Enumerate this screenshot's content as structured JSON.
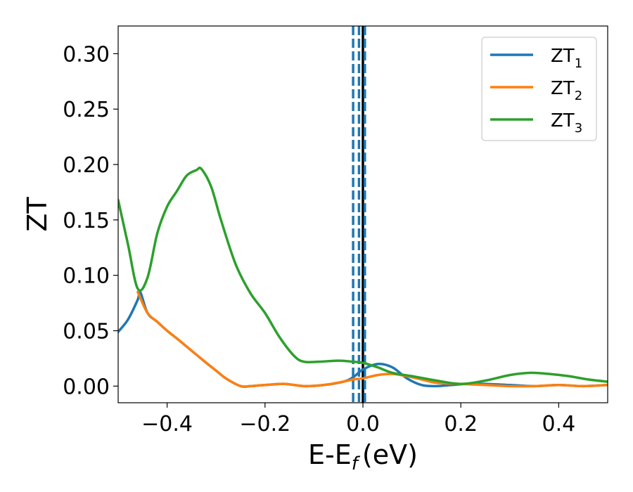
{
  "chart_data": {
    "type": "line",
    "xlabel": "E-E",
    "xlabel_subscript": "f",
    "xlabel_unit": "(eV)",
    "ylabel": "ZT",
    "xlim": [
      -0.5,
      0.5
    ],
    "ylim": [
      -0.015,
      0.325
    ],
    "x_ticks": [
      -0.4,
      -0.2,
      0.0,
      0.2,
      0.4
    ],
    "x_tick_labels": [
      "−0.4",
      "−0.2",
      "0.0",
      "0.2",
      "0.4"
    ],
    "y_ticks": [
      0.0,
      0.05,
      0.1,
      0.15,
      0.2,
      0.25,
      0.3
    ],
    "y_tick_labels": [
      "0.00",
      "0.05",
      "0.10",
      "0.15",
      "0.20",
      "0.25",
      "0.30"
    ],
    "grid": false,
    "legend_position": "top-right",
    "colors": {
      "blue": "#1f77b4",
      "orange": "#ff7f0e",
      "green": "#2ca02c",
      "black": "#000000"
    },
    "vertical_lines": [
      {
        "x": -0.02,
        "style": "dashed",
        "color": "#1f77b4"
      },
      {
        "x": -0.008,
        "style": "dashed",
        "color": "#1f77b4"
      },
      {
        "x": 0.0,
        "style": "solid",
        "color": "#000000"
      },
      {
        "x": 0.004,
        "style": "dashed",
        "color": "#1f77b4"
      }
    ],
    "series": [
      {
        "name": "ZT",
        "subscript": "1",
        "color": "#1f77b4",
        "x": [
          -0.5,
          -0.48,
          -0.46,
          -0.455,
          -0.44,
          -0.42,
          -0.4,
          -0.38,
          -0.35,
          -0.32,
          -0.3,
          -0.28,
          -0.25,
          -0.23,
          -0.2,
          -0.16,
          -0.12,
          -0.08,
          -0.04,
          -0.02,
          0.0,
          0.03,
          0.06,
          0.09,
          0.12,
          0.15,
          0.18,
          0.21,
          0.25,
          0.3,
          0.35,
          0.4,
          0.45,
          0.5
        ],
        "y": [
          0.049,
          0.06,
          0.078,
          0.085,
          0.066,
          0.058,
          0.05,
          0.043,
          0.032,
          0.021,
          0.014,
          0.007,
          0.0,
          0.0,
          0.001,
          0.002,
          0.0,
          0.001,
          0.004,
          0.008,
          0.015,
          0.02,
          0.017,
          0.007,
          0.001,
          0.0,
          0.001,
          0.002,
          0.002,
          0.001,
          0.0,
          0.001,
          0.0,
          0.001
        ]
      },
      {
        "name": "ZT",
        "subscript": "2",
        "color": "#ff7f0e",
        "x": [
          -0.46,
          -0.44,
          -0.42,
          -0.4,
          -0.38,
          -0.35,
          -0.32,
          -0.3,
          -0.28,
          -0.25,
          -0.23,
          -0.2,
          -0.16,
          -0.12,
          -0.08,
          -0.04,
          -0.02,
          0.0,
          0.03,
          0.06,
          0.09,
          0.12,
          0.15,
          0.2,
          0.25,
          0.3,
          0.35,
          0.4,
          0.45,
          0.5
        ],
        "y": [
          0.085,
          0.066,
          0.058,
          0.05,
          0.043,
          0.032,
          0.021,
          0.014,
          0.007,
          0.0,
          0.0,
          0.001,
          0.002,
          0.0,
          0.001,
          0.004,
          0.006,
          0.007,
          0.01,
          0.011,
          0.009,
          0.006,
          0.003,
          0.002,
          0.001,
          0.0,
          0.0,
          0.001,
          0.0,
          0.001
        ]
      },
      {
        "name": "ZT",
        "subscript": "3",
        "color": "#2ca02c",
        "x": [
          -0.5,
          -0.48,
          -0.46,
          -0.44,
          -0.42,
          -0.4,
          -0.38,
          -0.36,
          -0.34,
          -0.33,
          -0.31,
          -0.29,
          -0.26,
          -0.23,
          -0.2,
          -0.17,
          -0.14,
          -0.12,
          -0.09,
          -0.05,
          -0.02,
          0.0,
          0.03,
          0.06,
          0.1,
          0.15,
          0.2,
          0.25,
          0.3,
          0.34,
          0.38,
          0.42,
          0.46,
          0.5
        ],
        "y": [
          0.168,
          0.128,
          0.088,
          0.098,
          0.138,
          0.162,
          0.176,
          0.19,
          0.195,
          0.196,
          0.18,
          0.15,
          0.11,
          0.084,
          0.066,
          0.044,
          0.027,
          0.022,
          0.022,
          0.023,
          0.022,
          0.021,
          0.017,
          0.012,
          0.009,
          0.005,
          0.002,
          0.005,
          0.01,
          0.012,
          0.011,
          0.009,
          0.006,
          0.004
        ]
      }
    ]
  }
}
